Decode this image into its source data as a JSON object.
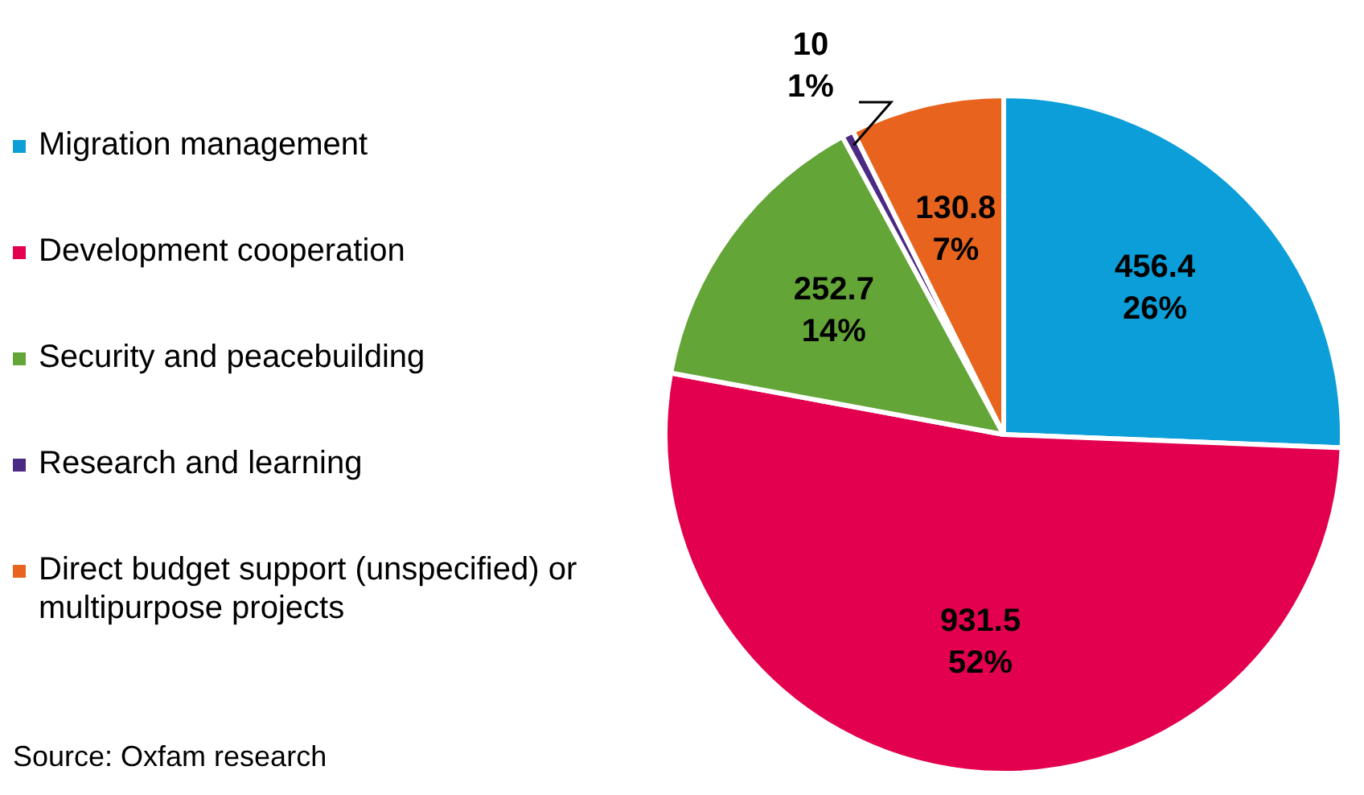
{
  "chart_data": {
    "type": "pie",
    "categories": [
      "Migration management",
      "Development cooperation",
      "Security and peacebuilding",
      "Research and learning",
      "Direct budget support (unspecified) or multipurpose projects"
    ],
    "values": [
      456.4,
      931.5,
      252.7,
      10,
      130.8
    ],
    "colors": [
      "#0b9ed8",
      "#e3004f",
      "#63a537",
      "#4b2a84",
      "#e8641e"
    ],
    "value_labels": [
      "456.4\n26%",
      "931.5\n52%",
      "252.7\n14%",
      "10\n1%",
      "130.8\n7%"
    ],
    "legend": "left",
    "annotations": [
      "Source: Oxfam research"
    ]
  }
}
